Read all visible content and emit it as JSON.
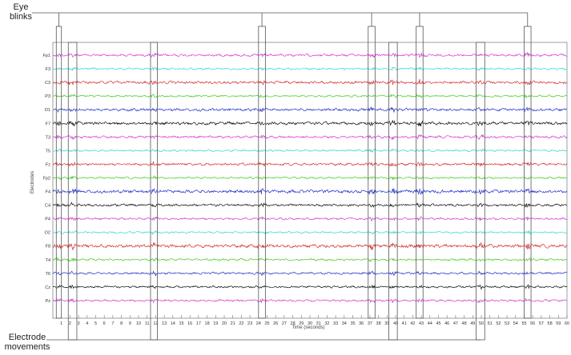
{
  "chart_data": {
    "type": "line",
    "annotation_top": "Eye\nblinks",
    "annotation_bottom": "Electrode\nmovements",
    "xlabel": "Time (seconds)",
    "ylabel": "Electrodes",
    "xlim": [
      0,
      60
    ],
    "xticks": [
      1,
      2,
      3,
      4,
      5,
      6,
      7,
      8,
      9,
      10,
      11,
      12,
      13,
      14,
      15,
      16,
      17,
      18,
      19,
      20,
      21,
      22,
      23,
      24,
      25,
      26,
      27,
      28,
      29,
      30,
      31,
      32,
      33,
      34,
      35,
      36,
      37,
      38,
      39,
      40,
      41,
      42,
      43,
      44,
      45,
      46,
      47,
      48,
      49,
      50,
      51,
      52,
      53,
      54,
      55,
      56,
      57,
      58,
      59,
      60
    ],
    "channels": [
      "Fp1",
      "F3",
      "C3",
      "P3",
      "O1",
      "F7",
      "T3",
      "T5",
      "Fz",
      "Fp2",
      "F4",
      "C4",
      "P4",
      "O2",
      "F8",
      "T4",
      "T6",
      "Cz",
      "Pz"
    ],
    "channel_colors": [
      "#d23ad2",
      "#33d6d6",
      "#d93030",
      "#44cc22",
      "#2233cc",
      "#111111",
      "#d23ad2",
      "#33d6d6",
      "#d93030",
      "#44cc22",
      "#2233cc",
      "#111111",
      "#d23ad2",
      "#33d6d6",
      "#d93030",
      "#44cc22",
      "#2233cc",
      "#111111",
      "#d23ad2"
    ],
    "channel_amplitudes": [
      0.7,
      0.5,
      0.8,
      0.5,
      0.8,
      0.9,
      0.7,
      0.5,
      0.7,
      0.5,
      1.0,
      0.7,
      0.6,
      0.5,
      1.0,
      0.6,
      0.6,
      0.6,
      0.6
    ],
    "eye_blinks_s": [
      [
        0.4,
        1.0
      ],
      [
        24.0,
        24.8
      ],
      [
        36.8,
        37.6
      ],
      [
        42.4,
        43.2
      ],
      [
        55.0,
        55.8
      ]
    ],
    "electrode_movements_s": [
      [
        1.8,
        2.8
      ],
      [
        11.4,
        12.2
      ],
      [
        39.2,
        40.2
      ],
      [
        49.4,
        50.4
      ]
    ]
  }
}
